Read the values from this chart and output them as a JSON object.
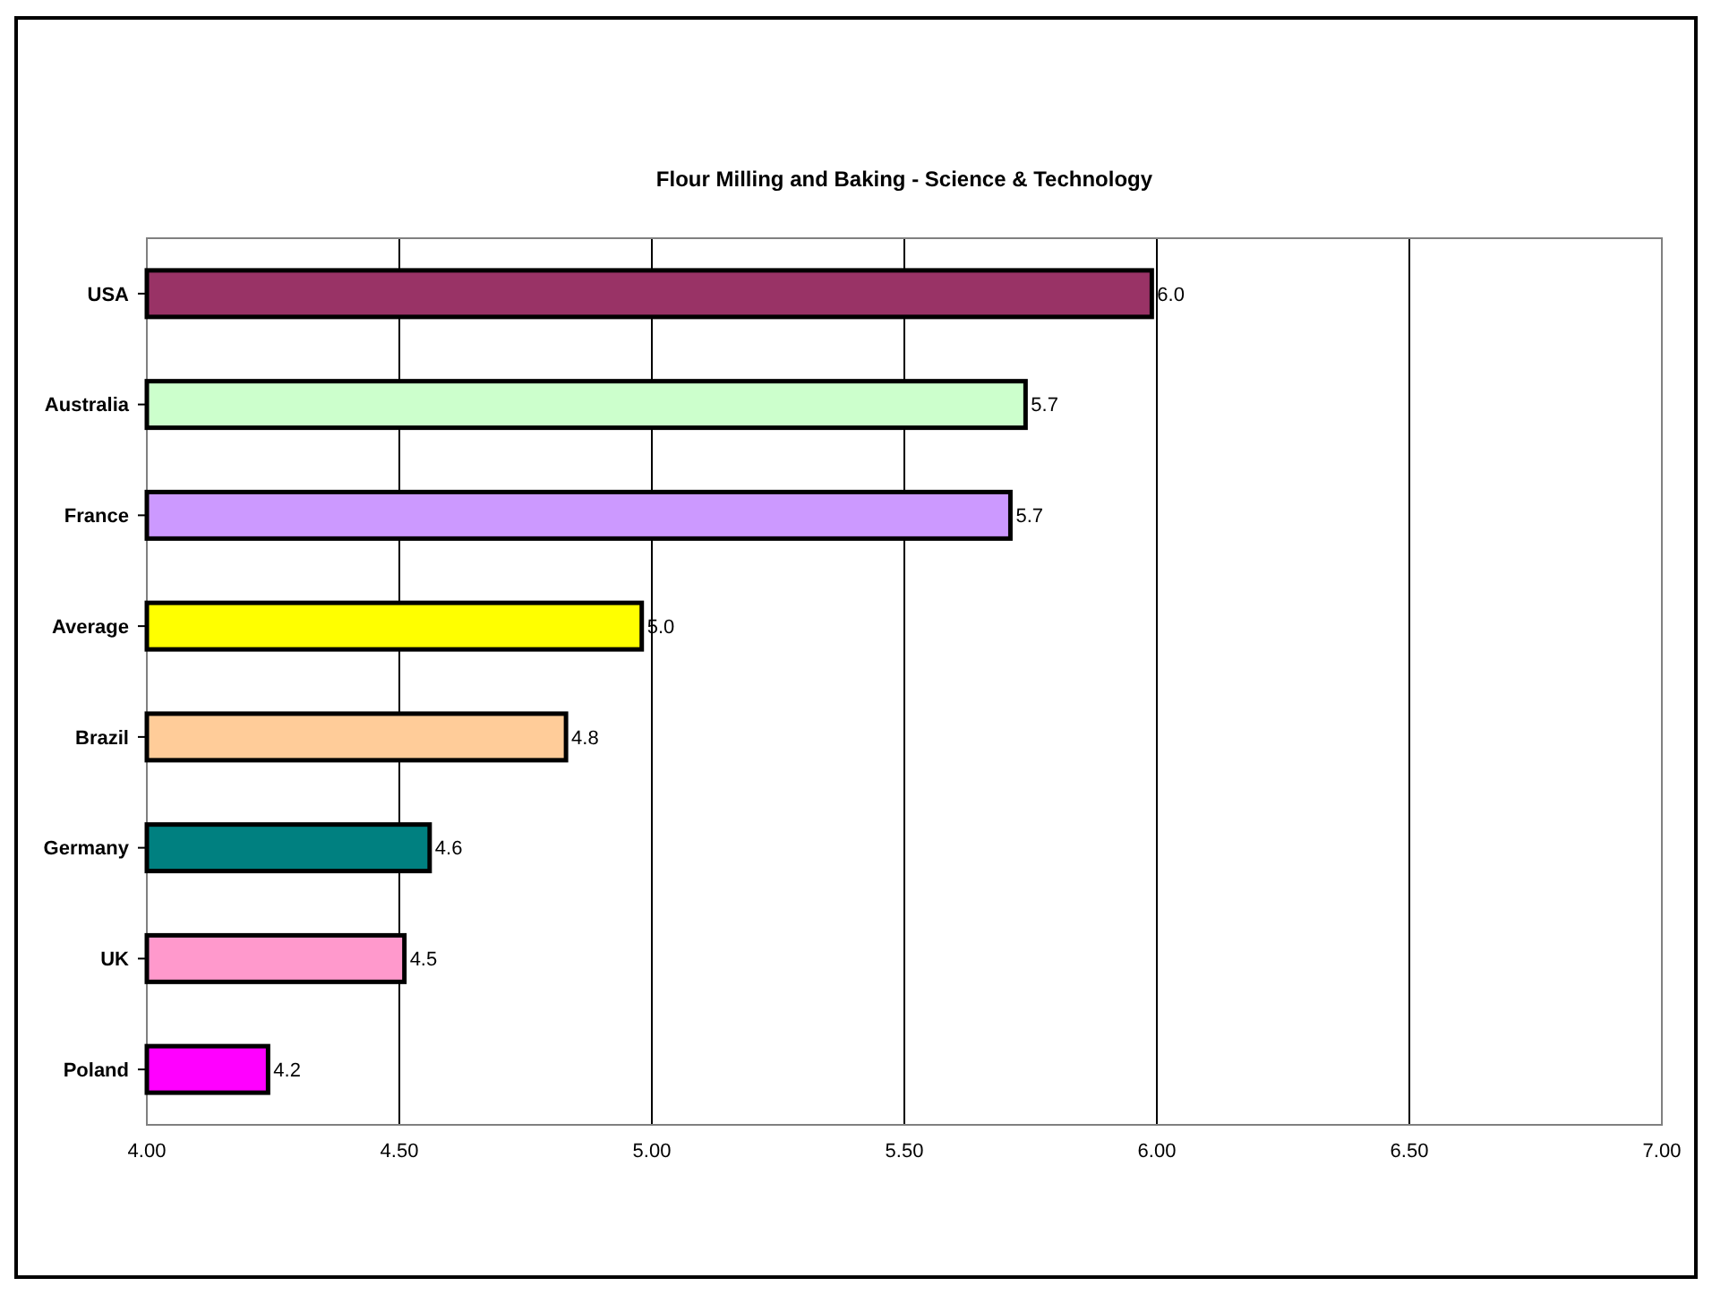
{
  "chart_data": {
    "type": "bar",
    "orientation": "horizontal",
    "title": "Flour Milling and Baking - Science & Technology",
    "categories": [
      "USA",
      "Australia",
      "France",
      "Average",
      "Brazil",
      "Germany",
      "UK",
      "Poland"
    ],
    "values": [
      5.99,
      5.74,
      5.71,
      4.98,
      4.83,
      4.56,
      4.51,
      4.24
    ],
    "value_labels": [
      "6.0",
      "5.7",
      "5.7",
      "5.0",
      "4.8",
      "4.6",
      "4.5",
      "4.2"
    ],
    "colors": [
      "#993366",
      "#ccffcc",
      "#cc99ff",
      "#ffff00",
      "#ffcc99",
      "#008080",
      "#ff99cc",
      "#ff00ff"
    ],
    "xlim": [
      4,
      7
    ],
    "xticks": [
      {
        "value": 4,
        "label": "4.00"
      },
      {
        "value": 4.5,
        "label": "4.50"
      },
      {
        "value": 5,
        "label": "5.00"
      },
      {
        "value": 5.5,
        "label": "5.50"
      },
      {
        "value": 6,
        "label": "6.00"
      },
      {
        "value": 6.5,
        "label": "6.50"
      },
      {
        "value": 7,
        "label": "7.00"
      }
    ],
    "grid": "x"
  }
}
